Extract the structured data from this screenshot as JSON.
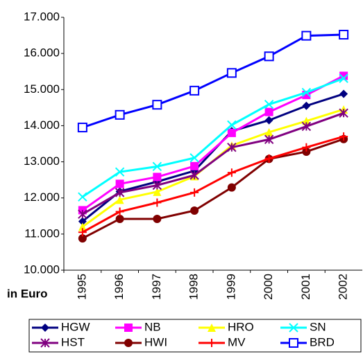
{
  "chart_data": {
    "type": "line",
    "y_label": "in Euro",
    "categories": [
      "1995",
      "1996",
      "1997",
      "1998",
      "1999",
      "2000",
      "2001",
      "2002"
    ],
    "ylim": [
      10000,
      17000
    ],
    "yticks": [
      {
        "value": 10000,
        "label": "10.000"
      },
      {
        "value": 11000,
        "label": "11.000"
      },
      {
        "value": 12000,
        "label": "12.000"
      },
      {
        "value": 13000,
        "label": "13.000"
      },
      {
        "value": 14000,
        "label": "14.000"
      },
      {
        "value": 15000,
        "label": "15.000"
      },
      {
        "value": 16000,
        "label": "16.000"
      },
      {
        "value": 17000,
        "label": "17.000"
      }
    ],
    "grid": false,
    "series": [
      {
        "name": "HGW",
        "color": "#000080",
        "marker": "diamond",
        "values": [
          11350,
          12180,
          12450,
          12750,
          13850,
          14150,
          14550,
          14880
        ]
      },
      {
        "name": "NB",
        "color": "#ff00ff",
        "marker": "square",
        "values": [
          11660,
          12390,
          12580,
          12880,
          13800,
          14380,
          14850,
          15380
        ]
      },
      {
        "name": "HRO",
        "color": "#ffff00",
        "marker": "triangle",
        "values": [
          11200,
          11950,
          12170,
          12600,
          13450,
          13820,
          14130,
          14450
        ]
      },
      {
        "name": "SN",
        "color": "#00ffff",
        "marker": "x",
        "values": [
          12030,
          12720,
          12870,
          13110,
          14020,
          14590,
          14920,
          15310
        ]
      },
      {
        "name": "HST",
        "color": "#800080",
        "marker": "asterisk",
        "values": [
          11550,
          12150,
          12350,
          12630,
          13400,
          13620,
          13980,
          14350
        ]
      },
      {
        "name": "HWI",
        "color": "#800000",
        "marker": "circle",
        "values": [
          10880,
          11420,
          11420,
          11650,
          12290,
          13080,
          13280,
          13630
        ]
      },
      {
        "name": "MV",
        "color": "#ff0000",
        "marker": "plus",
        "values": [
          11050,
          11620,
          11870,
          12150,
          12700,
          13090,
          13400,
          13700
        ]
      },
      {
        "name": "BRD",
        "color": "#0000ff",
        "marker": "open-square",
        "values": [
          13950,
          14300,
          14580,
          14970,
          15460,
          15920,
          16490,
          16520
        ]
      }
    ]
  }
}
